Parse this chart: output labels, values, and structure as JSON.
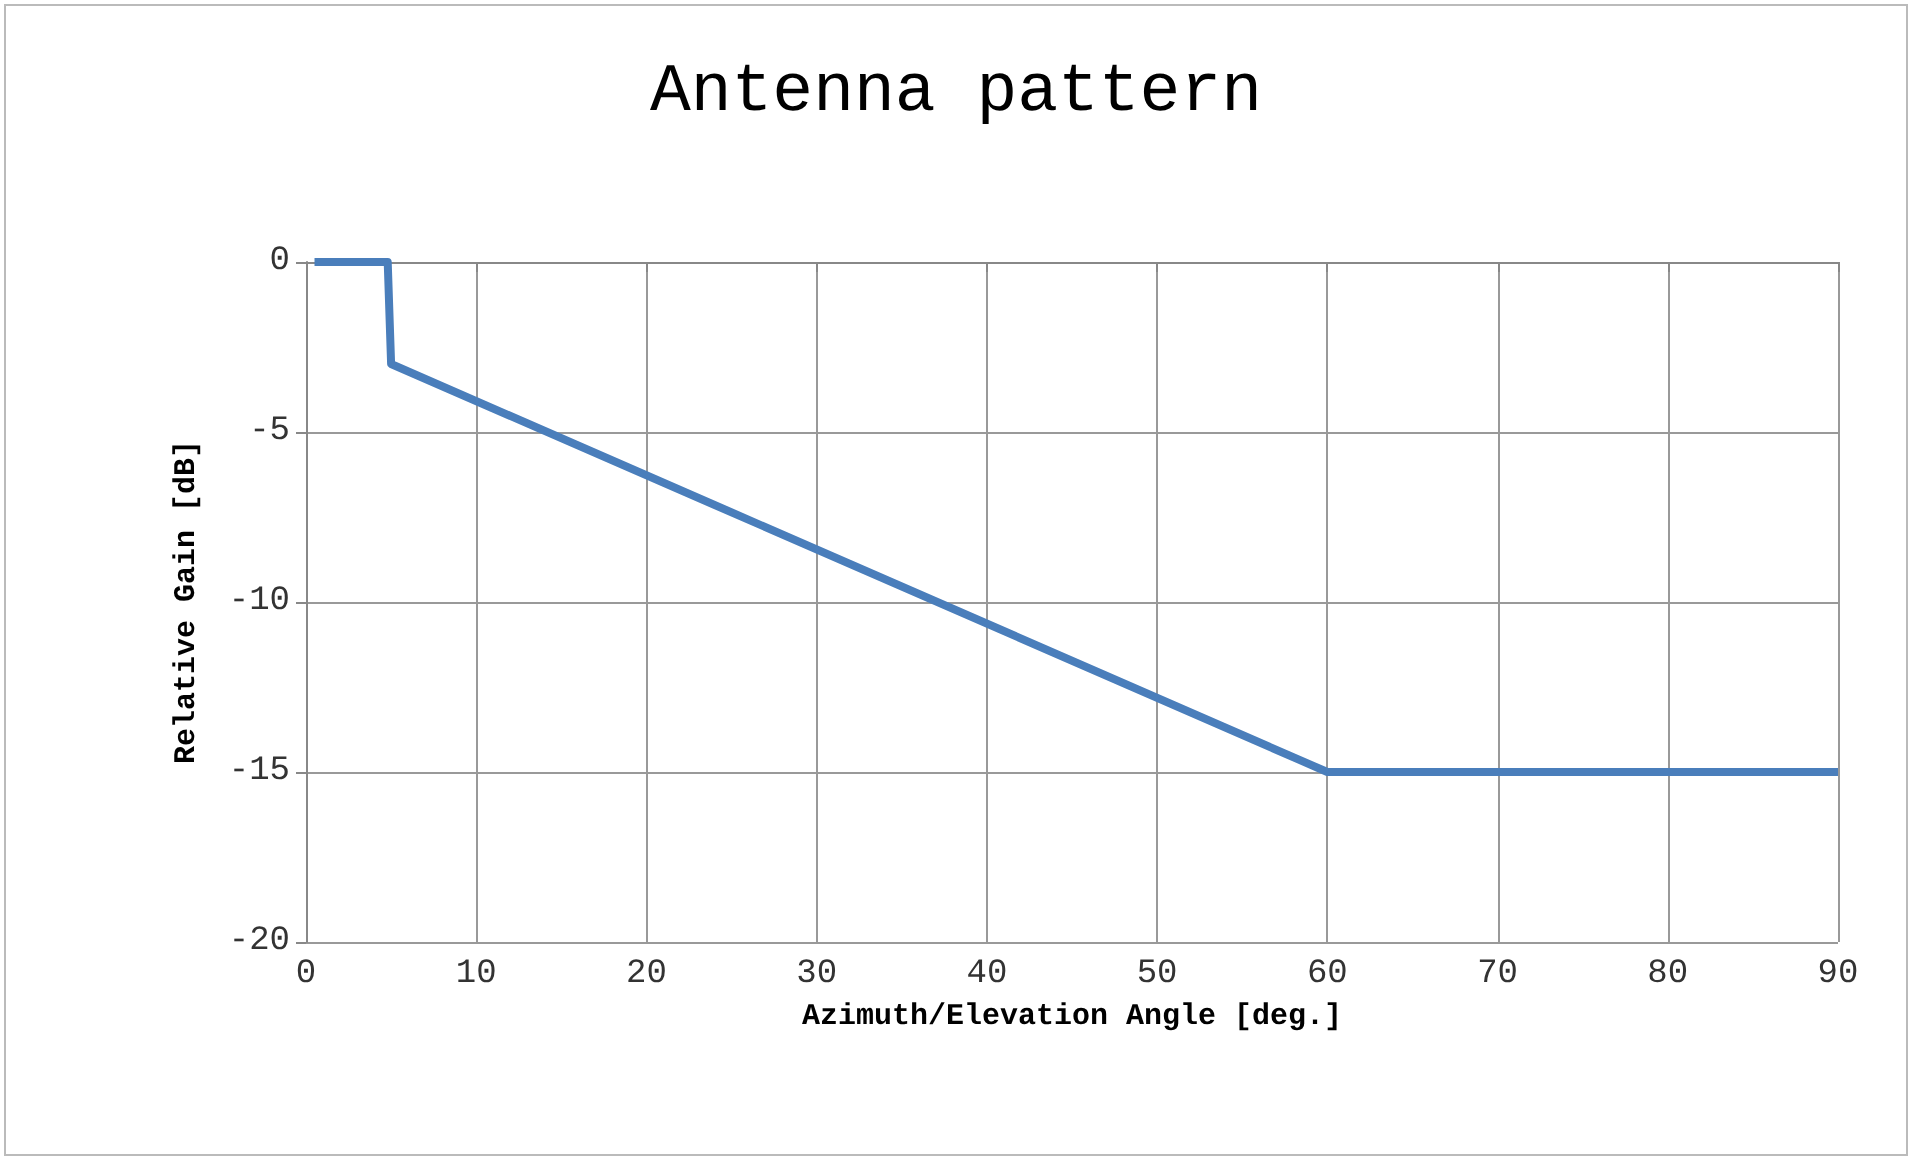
{
  "chart_data": {
    "type": "line",
    "title": "Antenna pattern",
    "xlabel": "Azimuth/Elevation Angle [deg.]",
    "ylabel": "Relative Gain [dB]",
    "x": [
      0.5,
      4.8,
      5,
      60,
      90
    ],
    "series": [
      {
        "color": "#4a7ebb",
        "values": [
          0,
          0,
          -3,
          -15,
          -15
        ]
      }
    ],
    "xlim": [
      0,
      90
    ],
    "xticks": [
      0,
      10,
      20,
      30,
      40,
      50,
      60,
      70,
      80,
      90
    ],
    "ylim": [
      -20,
      0
    ],
    "yticks": [
      -20,
      -15,
      -10,
      -5,
      0
    ],
    "grid": true,
    "marker": "none",
    "line_style": "solid"
  }
}
